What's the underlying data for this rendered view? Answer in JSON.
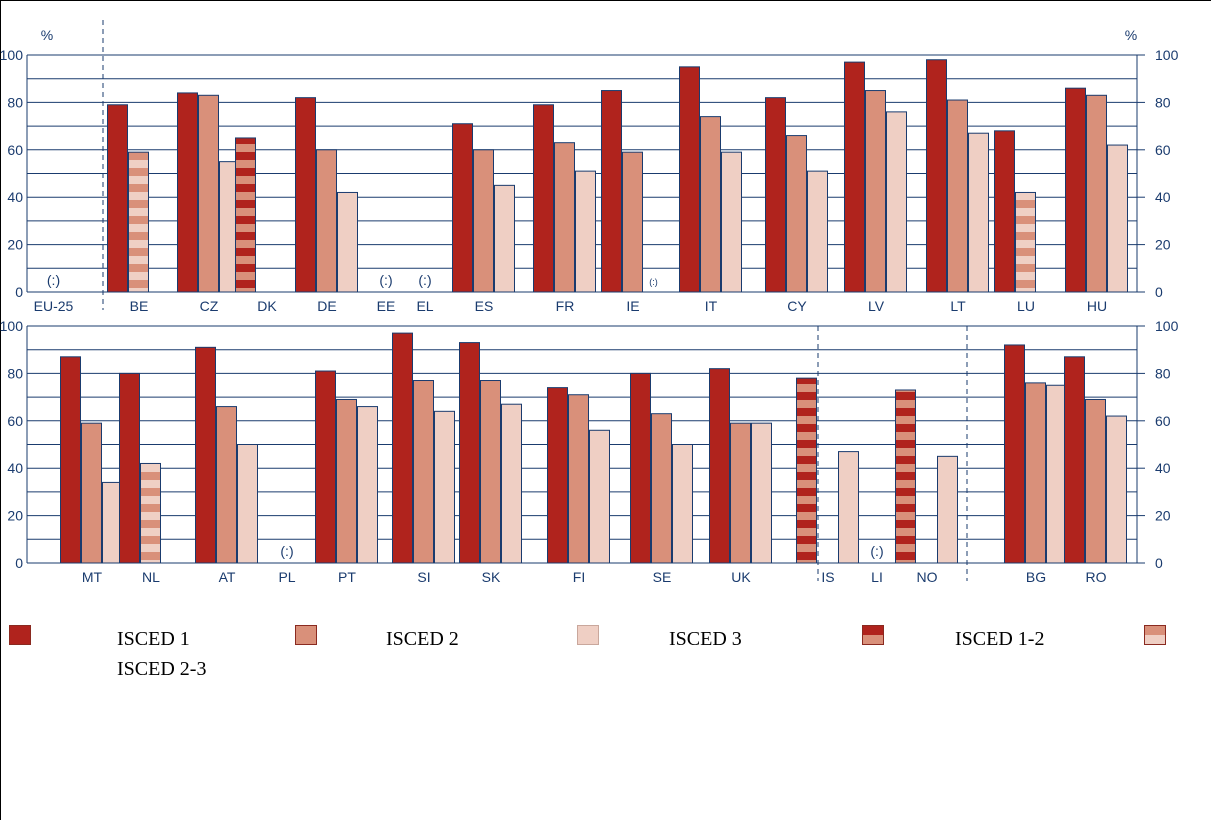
{
  "chart_data": {
    "type": "bar",
    "unit_label": "%",
    "y_ticks": [
      "0",
      "20",
      "40",
      "60",
      "80",
      "100"
    ],
    "ylim": [
      0,
      100
    ],
    "grid": true,
    "series": [
      {
        "name": "ISCED 1",
        "color": "#b0231d"
      },
      {
        "name": "ISCED 2",
        "color": "#d9907a"
      },
      {
        "name": "ISCED 3",
        "color": "#efcfc4"
      },
      {
        "name": "ISCED 1-2",
        "color": "striped-isced1-isced2"
      },
      {
        "name": "ISCED 2-3",
        "color": "striped-isced2-isced3"
      }
    ],
    "panels": [
      {
        "categories": [
          {
            "label": "EU-25",
            "values": [],
            "note": "(:)"
          },
          {
            "label": "BE",
            "values": [
              {
                "series": "ISCED 1",
                "value": 79
              },
              {
                "series": "ISCED 2-3",
                "value": 59
              }
            ]
          },
          {
            "label": "CZ",
            "values": [
              {
                "series": "ISCED 1",
                "value": 84
              },
              {
                "series": "ISCED 2",
                "value": 83
              },
              {
                "series": "ISCED 3",
                "value": 55
              }
            ]
          },
          {
            "label": "DK",
            "values": [
              {
                "series": "ISCED 1-2",
                "value": 65
              }
            ]
          },
          {
            "label": "DE",
            "values": [
              {
                "series": "ISCED 1",
                "value": 82
              },
              {
                "series": "ISCED 2",
                "value": 60
              },
              {
                "series": "ISCED 3",
                "value": 42
              }
            ]
          },
          {
            "label": "EE",
            "values": [],
            "note": "(:)"
          },
          {
            "label": "EL",
            "values": [],
            "note": "(:)"
          },
          {
            "label": "ES",
            "values": [
              {
                "series": "ISCED 1",
                "value": 71
              },
              {
                "series": "ISCED 2",
                "value": 60
              },
              {
                "series": "ISCED 3",
                "value": 45
              }
            ]
          },
          {
            "label": "FR",
            "values": [
              {
                "series": "ISCED 1",
                "value": 79
              },
              {
                "series": "ISCED 2",
                "value": 63
              },
              {
                "series": "ISCED 3",
                "value": 51
              }
            ]
          },
          {
            "label": "IE",
            "values": [
              {
                "series": "ISCED 1",
                "value": 85
              },
              {
                "series": "ISCED 2",
                "value": 59
              }
            ],
            "note": "(:)"
          },
          {
            "label": "IT",
            "values": [
              {
                "series": "ISCED 1",
                "value": 95
              },
              {
                "series": "ISCED 2",
                "value": 74
              },
              {
                "series": "ISCED 3",
                "value": 59
              }
            ]
          },
          {
            "label": "CY",
            "values": [
              {
                "series": "ISCED 1",
                "value": 82
              },
              {
                "series": "ISCED 2",
                "value": 66
              },
              {
                "series": "ISCED 3",
                "value": 51
              }
            ]
          },
          {
            "label": "LV",
            "values": [
              {
                "series": "ISCED 1",
                "value": 97
              },
              {
                "series": "ISCED 2",
                "value": 85
              },
              {
                "series": "ISCED 3",
                "value": 76
              }
            ]
          },
          {
            "label": "LT",
            "values": [
              {
                "series": "ISCED 1",
                "value": 98
              },
              {
                "series": "ISCED 2",
                "value": 81
              },
              {
                "series": "ISCED 3",
                "value": 67
              }
            ]
          },
          {
            "label": "LU",
            "values": [
              {
                "series": "ISCED 1",
                "value": 68
              },
              {
                "series": "ISCED 2-3",
                "value": 42
              }
            ]
          },
          {
            "label": "HU",
            "values": [
              {
                "series": "ISCED 1",
                "value": 86
              },
              {
                "series": "ISCED 2",
                "value": 83
              },
              {
                "series": "ISCED 3",
                "value": 62
              }
            ]
          }
        ]
      },
      {
        "categories": [
          {
            "label": "MT",
            "values": [
              {
                "series": "ISCED 1",
                "value": 87
              },
              {
                "series": "ISCED 2",
                "value": 59
              },
              {
                "series": "ISCED 3",
                "value": 34
              }
            ]
          },
          {
            "label": "NL",
            "values": [
              {
                "series": "ISCED 1",
                "value": 80
              },
              {
                "series": "ISCED 2-3",
                "value": 42
              }
            ]
          },
          {
            "label": "AT",
            "values": [
              {
                "series": "ISCED 1",
                "value": 91
              },
              {
                "series": "ISCED 2",
                "value": 66
              },
              {
                "series": "ISCED 3",
                "value": 50
              }
            ]
          },
          {
            "label": "PL",
            "values": [],
            "note": "(:)"
          },
          {
            "label": "PT",
            "values": [
              {
                "series": "ISCED 1",
                "value": 81
              },
              {
                "series": "ISCED 2",
                "value": 69
              },
              {
                "series": "ISCED 3",
                "value": 66
              }
            ]
          },
          {
            "label": "SI",
            "values": [
              {
                "series": "ISCED 1",
                "value": 97
              },
              {
                "series": "ISCED 2",
                "value": 77
              },
              {
                "series": "ISCED 3",
                "value": 64
              }
            ]
          },
          {
            "label": "SK",
            "values": [
              {
                "series": "ISCED 1",
                "value": 93
              },
              {
                "series": "ISCED 2",
                "value": 77
              },
              {
                "series": "ISCED 3",
                "value": 67
              }
            ]
          },
          {
            "label": "FI",
            "values": [
              {
                "series": "ISCED 1",
                "value": 74
              },
              {
                "series": "ISCED 2",
                "value": 71
              },
              {
                "series": "ISCED 3",
                "value": 56
              }
            ]
          },
          {
            "label": "SE",
            "values": [
              {
                "series": "ISCED 1",
                "value": 80
              },
              {
                "series": "ISCED 2",
                "value": 63
              },
              {
                "series": "ISCED 3",
                "value": 50
              }
            ]
          },
          {
            "label": "UK",
            "values": [
              {
                "series": "ISCED 1",
                "value": 82
              },
              {
                "series": "ISCED 2",
                "value": 59
              },
              {
                "series": "ISCED 3",
                "value": 59
              }
            ]
          },
          {
            "label": "IS",
            "values": [
              {
                "series": "ISCED 3",
                "value": 47
              },
              {
                "series": "ISCED 1-2",
                "value": 78
              }
            ]
          },
          {
            "label": "LI",
            "values": [],
            "note": "(:)"
          },
          {
            "label": "NO",
            "values": [
              {
                "series": "ISCED 3",
                "value": 45
              },
              {
                "series": "ISCED 1-2",
                "value": 73
              }
            ]
          },
          {
            "label": "BG",
            "values": [
              {
                "series": "ISCED 1",
                "value": 92
              },
              {
                "series": "ISCED 2",
                "value": 76
              },
              {
                "series": "ISCED 3",
                "value": 75
              }
            ]
          },
          {
            "label": "RO",
            "values": [
              {
                "series": "ISCED 1",
                "value": 87
              },
              {
                "series": "ISCED 2",
                "value": 69
              },
              {
                "series": "ISCED 3",
                "value": 62
              }
            ]
          }
        ]
      }
    ]
  },
  "legend": {
    "items": [
      {
        "label": "ISCED 1",
        "swatch": "ISCED 1"
      },
      {
        "label": "ISCED 2",
        "swatch": "ISCED 2"
      },
      {
        "label": "ISCED 3",
        "swatch": "ISCED 3"
      },
      {
        "label": "ISCED 1-2",
        "swatch": "ISCED 1-2"
      },
      {
        "label": "ISCED 2-3",
        "swatch": "ISCED 2-3"
      }
    ]
  }
}
